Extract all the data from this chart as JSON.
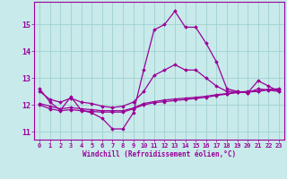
{
  "xlabel": "Windchill (Refroidissement éolien,°C)",
  "bg_color": "#c8eaea",
  "grid_color": "#a0d0d0",
  "line_color": "#990099",
  "hours": [
    0,
    1,
    2,
    3,
    4,
    5,
    6,
    7,
    8,
    9,
    10,
    11,
    12,
    13,
    14,
    15,
    16,
    17,
    18,
    19,
    20,
    21,
    22,
    23
  ],
  "line1": [
    12.6,
    12.1,
    11.8,
    12.3,
    11.8,
    11.7,
    11.5,
    11.1,
    11.1,
    11.7,
    13.3,
    14.8,
    15.0,
    15.5,
    14.9,
    14.9,
    14.3,
    13.6,
    12.6,
    12.5,
    12.45,
    12.9,
    12.7,
    12.5
  ],
  "line2": [
    12.5,
    12.2,
    12.1,
    12.25,
    12.1,
    12.05,
    11.95,
    11.9,
    11.95,
    12.1,
    12.5,
    13.1,
    13.3,
    13.5,
    13.3,
    13.3,
    13.0,
    12.7,
    12.5,
    12.5,
    12.45,
    12.6,
    12.55,
    12.5
  ],
  "line3": [
    12.05,
    11.95,
    11.85,
    11.9,
    11.85,
    11.82,
    11.78,
    11.78,
    11.78,
    11.88,
    12.05,
    12.12,
    12.18,
    12.22,
    12.25,
    12.28,
    12.32,
    12.38,
    12.42,
    12.48,
    12.5,
    12.52,
    12.58,
    12.6
  ],
  "line4": [
    12.0,
    11.85,
    11.78,
    11.82,
    11.78,
    11.75,
    11.73,
    11.73,
    11.73,
    11.85,
    12.0,
    12.08,
    12.12,
    12.16,
    12.2,
    12.24,
    12.28,
    12.35,
    12.4,
    12.46,
    12.48,
    12.5,
    12.56,
    12.58
  ],
  "ylim": [
    10.7,
    15.85
  ],
  "yticks": [
    11,
    12,
    13,
    14,
    15
  ],
  "xticks": [
    0,
    1,
    2,
    3,
    4,
    5,
    6,
    7,
    8,
    9,
    10,
    11,
    12,
    13,
    14,
    15,
    16,
    17,
    18,
    19,
    20,
    21,
    22,
    23
  ]
}
